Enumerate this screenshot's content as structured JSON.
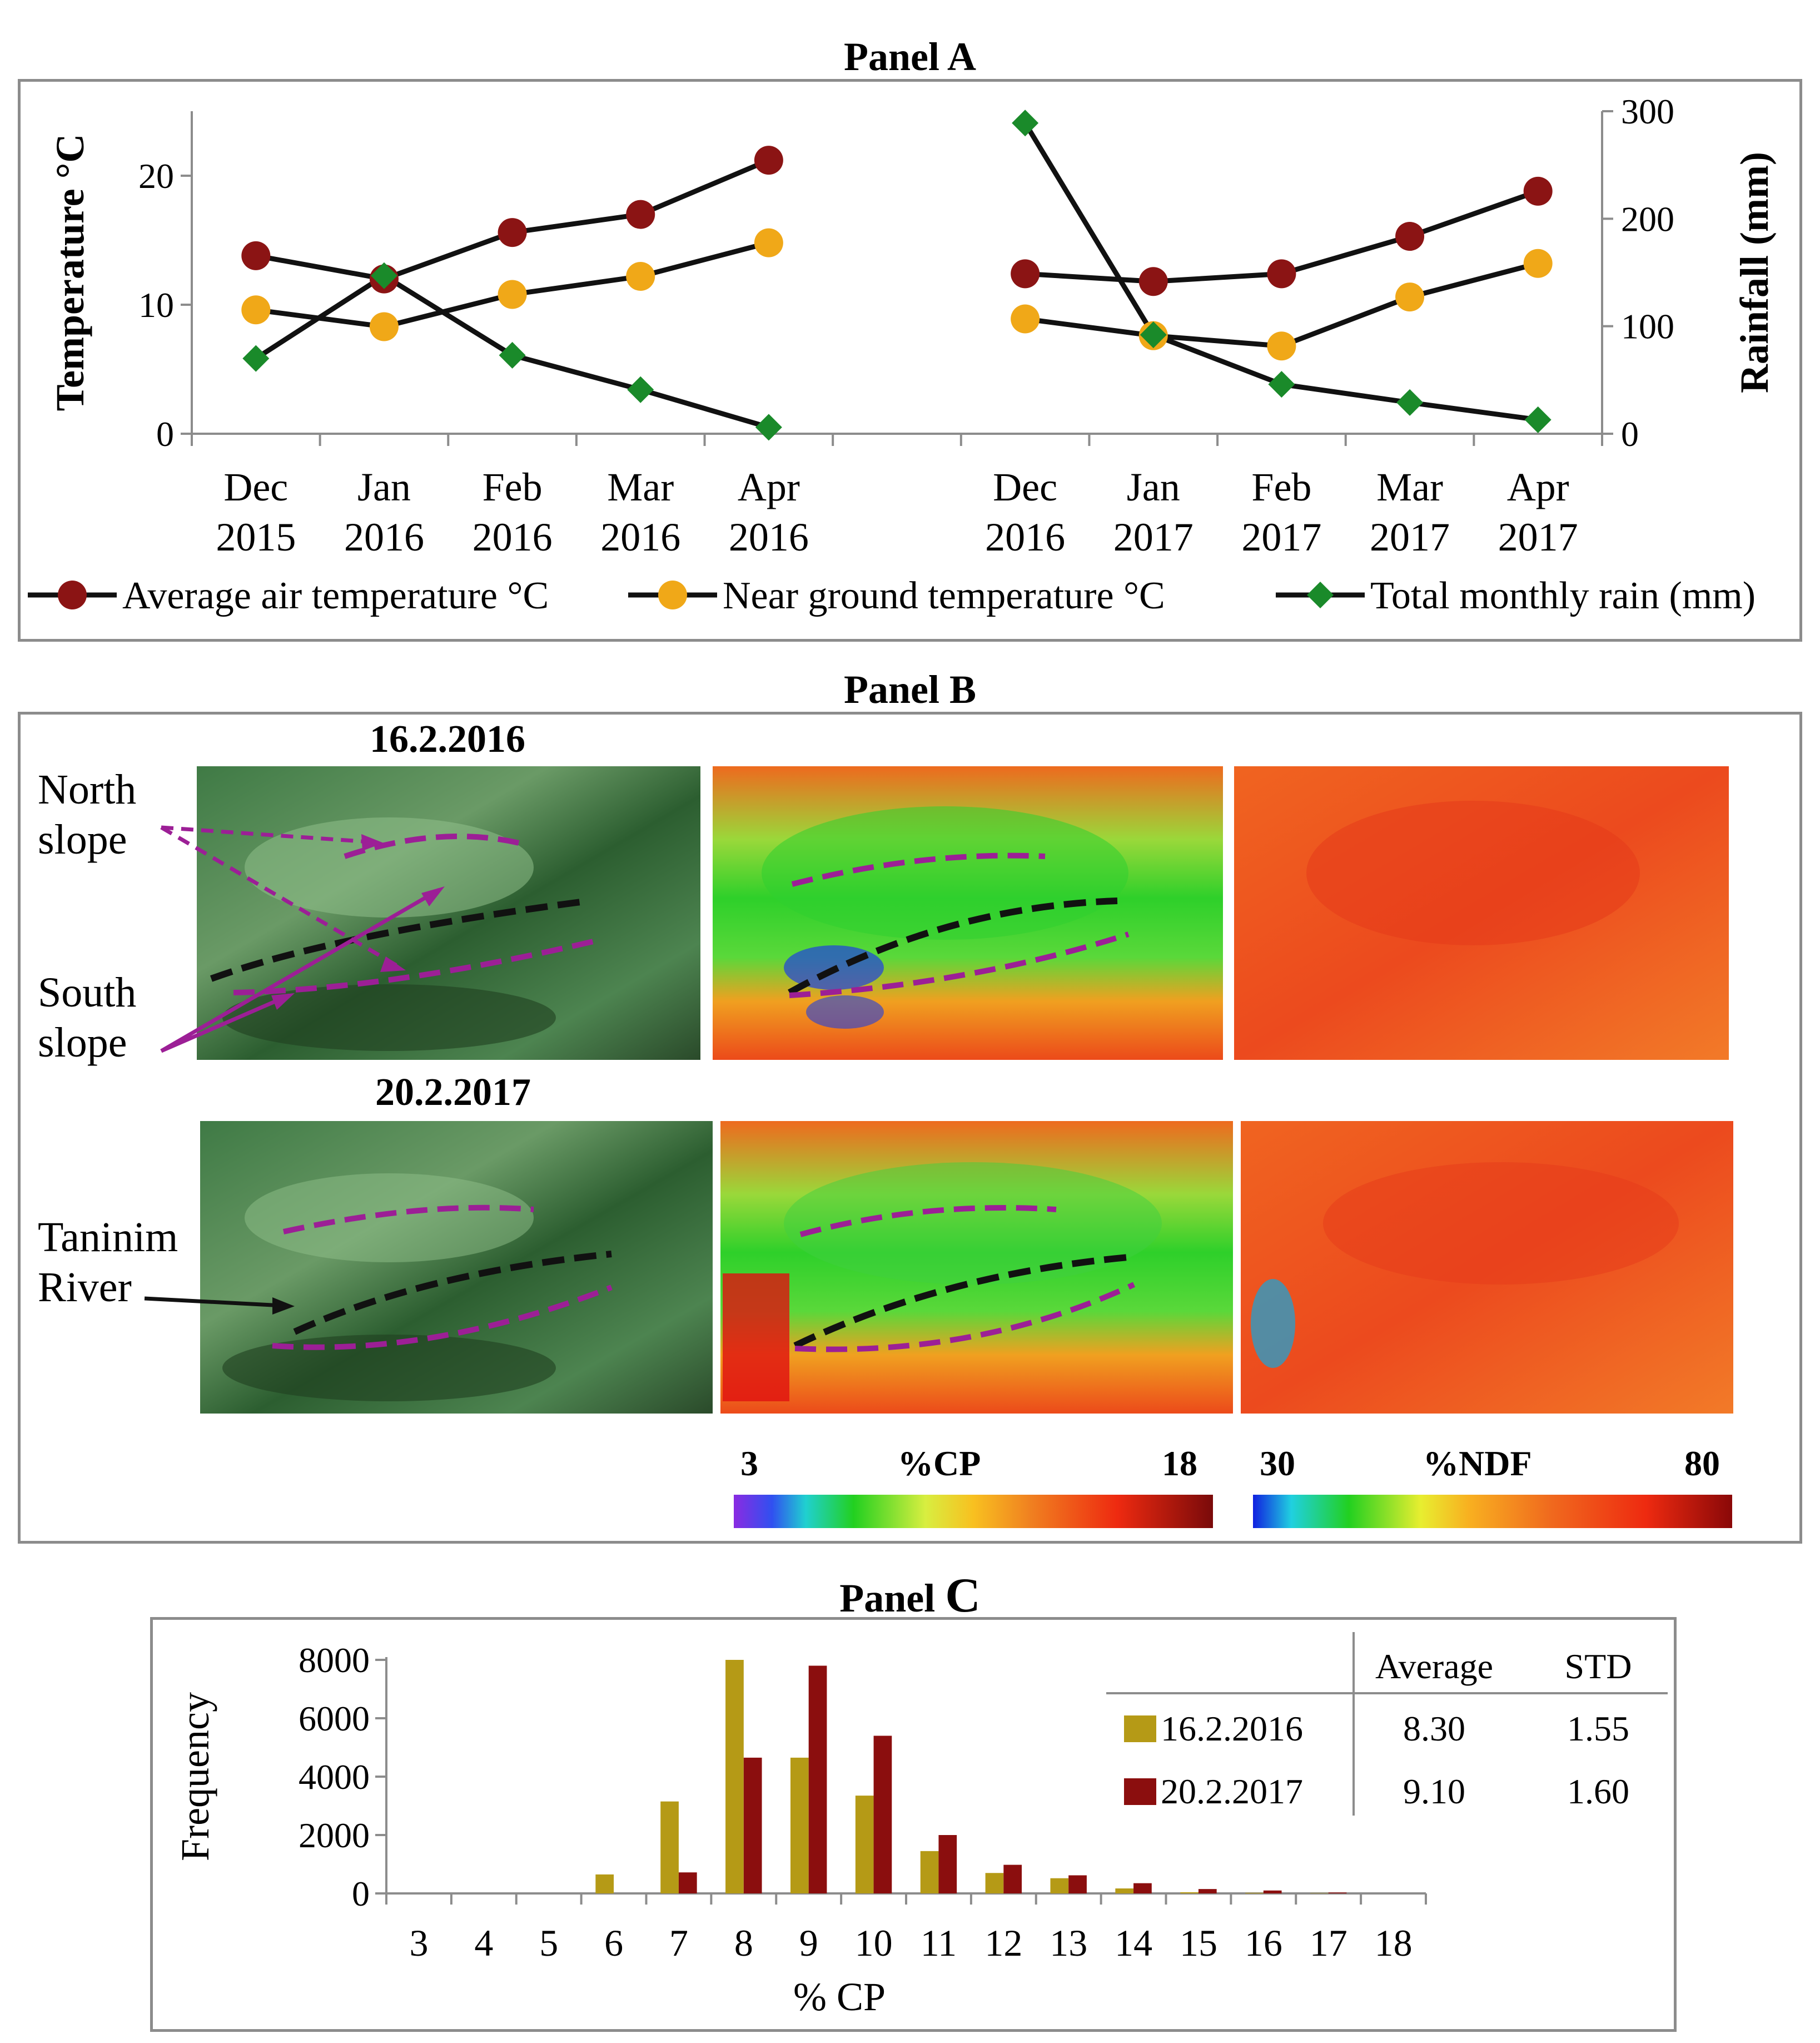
{
  "panels": {
    "a": "Panel A",
    "b": "Panel B",
    "c_prefix": "Panel ",
    "c_letter": "C"
  },
  "chart_data": [
    {
      "type": "line",
      "title": "Panel A",
      "ylabel": "Temperature °C",
      "y2label": "Rainfall (mm)",
      "ylim": [
        0,
        25
      ],
      "y2lim": [
        0,
        300
      ],
      "yticks": [
        "0",
        "10",
        "20"
      ],
      "y2ticks": [
        "0",
        "100",
        "200",
        "300"
      ],
      "groups": [
        {
          "categories": [
            [
              "Dec",
              "2015"
            ],
            [
              "Jan",
              "2016"
            ],
            [
              "Feb",
              "2016"
            ],
            [
              "Mar",
              "2016"
            ],
            [
              "Apr",
              "2016"
            ]
          ],
          "series": [
            {
              "name": "Average air temperature °C",
              "axis": "left",
              "color": "#8b1414",
              "marker": "circle",
              "values": [
                13.8,
                12.0,
                15.6,
                17.0,
                21.2
              ]
            },
            {
              "name": "Near ground temperature °C",
              "axis": "left",
              "color": "#f0a818",
              "marker": "circle",
              "values": [
                9.6,
                8.3,
                10.8,
                12.2,
                14.8
              ]
            },
            {
              "name": "Total monthly rain (mm)",
              "axis": "right",
              "color": "#1a8a2a",
              "marker": "diamond",
              "values": [
                70,
                147,
                73,
                41,
                6
              ]
            }
          ]
        },
        {
          "categories": [
            [
              "Dec",
              "2016"
            ],
            [
              "Jan",
              "2017"
            ],
            [
              "Feb",
              "2017"
            ],
            [
              "Mar",
              "2017"
            ],
            [
              "Apr",
              "2017"
            ]
          ],
          "series": [
            {
              "name": "Average air temperature °C",
              "axis": "left",
              "color": "#8b1414",
              "marker": "circle",
              "values": [
                12.4,
                11.8,
                12.4,
                15.3,
                18.8
              ]
            },
            {
              "name": "Near ground temperature °C",
              "axis": "left",
              "color": "#f0a818",
              "marker": "circle",
              "values": [
                8.9,
                7.6,
                6.8,
                10.6,
                13.2
              ]
            },
            {
              "name": "Total monthly rain (mm)",
              "axis": "right",
              "color": "#1a8a2a",
              "marker": "diamond",
              "values": [
                289,
                92,
                46,
                29,
                13
              ]
            }
          ]
        }
      ],
      "legend": [
        {
          "label": "Average air temperature °C",
          "color": "#8b1414",
          "marker": "circle"
        },
        {
          "label": "Near ground temperature °C",
          "color": "#f0a818",
          "marker": "circle"
        },
        {
          "label": "Total monthly rain (mm)",
          "color": "#1a8a2a",
          "marker": "diamond"
        }
      ]
    },
    {
      "type": "bar",
      "title": "Panel C",
      "xlabel": "% CP",
      "ylabel": "Frequency",
      "ylim": [
        0,
        8000
      ],
      "yticks": [
        "0",
        "2000",
        "4000",
        "6000",
        "8000"
      ],
      "categories": [
        "3",
        "4",
        "5",
        "6",
        "7",
        "8",
        "9",
        "10",
        "11",
        "12",
        "13",
        "14",
        "15",
        "16",
        "17",
        "18"
      ],
      "series": [
        {
          "name": "16.2.2016",
          "color": "#b59a16",
          "values": [
            0,
            0,
            0,
            650,
            3150,
            8000,
            4650,
            3350,
            1450,
            700,
            520,
            170,
            40,
            20,
            10,
            0
          ]
        },
        {
          "name": "20.2.2017",
          "color": "#8b0e0e",
          "values": [
            0,
            0,
            0,
            0,
            720,
            4650,
            7800,
            5400,
            2000,
            980,
            620,
            350,
            150,
            100,
            30,
            0
          ]
        }
      ],
      "stats_table": {
        "headers": [
          "Average",
          "STD"
        ],
        "rows": [
          {
            "label": "16.2.2016",
            "average": "8.30",
            "std": "1.55"
          },
          {
            "label": "20.2.2017",
            "average": "9.10",
            "std": "1.60"
          }
        ]
      }
    }
  ],
  "panel_b": {
    "dates": [
      "16.2.2016",
      "20.2.2017"
    ],
    "labels": {
      "north_1": "North",
      "north_2": "slope",
      "south_1": "South",
      "south_2": "slope",
      "river_1": "Taninim",
      "river_2": "River"
    },
    "cp_scale": {
      "min": "3",
      "label": "%CP",
      "max": "18"
    },
    "ndf_scale": {
      "min": "30",
      "label": "%NDF",
      "max": "80"
    },
    "colors": {
      "dashed_slope": "#9c1f96",
      "dashed_river": "#111111"
    }
  }
}
